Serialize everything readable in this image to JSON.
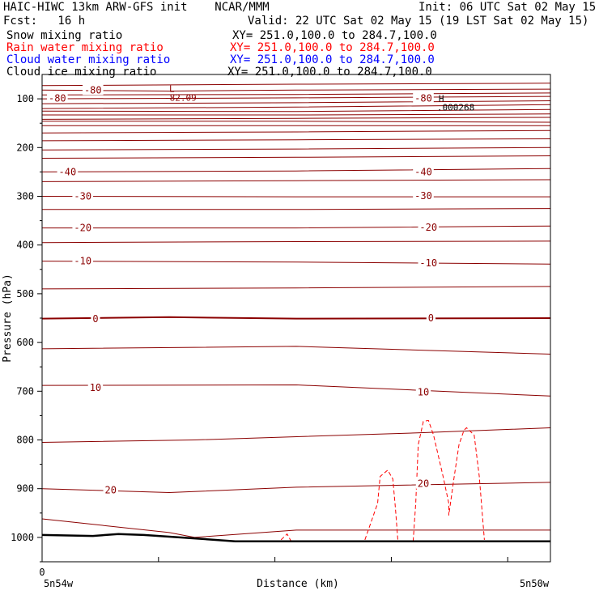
{
  "header": {
    "title_left": "HAIC-HIWC 13km ARW-GFS init    NCAR/MMM",
    "init": "Init: 06 UTC Sat 02 May 15",
    "fcst": "Fcst:   16 h",
    "valid": "Valid: 22 UTC Sat 02 May 15 (19 LST Sat 02 May 15)"
  },
  "fields": [
    {
      "label": "Snow mixing ratio",
      "xy": "XY= 251.0,100.0 to 284.7,100.0",
      "color": "#000000"
    },
    {
      "label": "Rain water mixing ratio",
      "xy": "XY= 251.0,100.0 to 284.7,100.0",
      "color": "#ff0000"
    },
    {
      "label": "Cloud water mixing ratio",
      "xy": "XY= 251.0,100.0 to 284.7,100.0",
      "color": "#0000ff"
    },
    {
      "label": "Cloud ice mixing ratio",
      "xy": "XY= 251.0,100.0 to 284.7,100.0",
      "color": "#000000"
    }
  ],
  "colors": {
    "temperature": "#8b0000",
    "rain": "#ff0000",
    "ground": "#000000"
  },
  "chart_data": {
    "type": "line",
    "xlabel": "Distance (km)",
    "ylabel": "Pressure (hPa)",
    "ylim": [
      1050,
      50
    ],
    "y_ticks": [
      "100",
      "200",
      "300",
      "400",
      "500",
      "600",
      "700",
      "800",
      "900",
      "1000"
    ],
    "x_tick_labels": {
      "origin": "0",
      "left": "5n54w",
      "right": "5n50w"
    },
    "contour_labels": [
      {
        "text": "-80",
        "d": 0.1,
        "p": 82
      },
      {
        "text": "-80",
        "d": 0.03,
        "p": 99
      },
      {
        "text": "-80",
        "d": 0.75,
        "p": 99
      },
      {
        "text": "-40",
        "d": 0.05,
        "p": 250
      },
      {
        "text": "-40",
        "d": 0.75,
        "p": 250
      },
      {
        "text": "-30",
        "d": 0.08,
        "p": 300
      },
      {
        "text": "-30",
        "d": 0.75,
        "p": 299
      },
      {
        "text": "-20",
        "d": 0.08,
        "p": 365
      },
      {
        "text": "-20",
        "d": 0.76,
        "p": 364
      },
      {
        "text": "-10",
        "d": 0.08,
        "p": 433
      },
      {
        "text": "-10",
        "d": 0.76,
        "p": 437
      },
      {
        "text": "0",
        "d": 0.105,
        "p": 552
      },
      {
        "text": "0",
        "d": 0.765,
        "p": 550
      },
      {
        "text": "10",
        "d": 0.105,
        "p": 693
      },
      {
        "text": "10",
        "d": 0.75,
        "p": 702
      },
      {
        "text": "20",
        "d": 0.135,
        "p": 903
      },
      {
        "text": "20",
        "d": 0.75,
        "p": 890
      }
    ],
    "extrema": [
      {
        "symbol": "L",
        "value": "-82.09",
        "d": 0.25,
        "p": 86
      },
      {
        "symbol": "H",
        "value": ".000268",
        "d": 0.78,
        "p": 106
      }
    ]
  }
}
